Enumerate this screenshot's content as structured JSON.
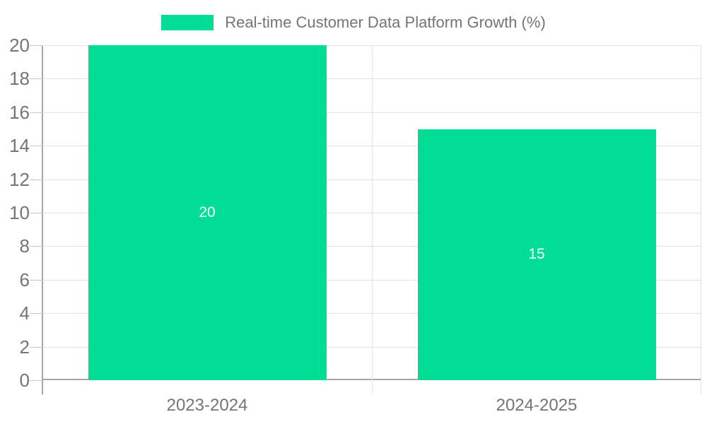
{
  "chart_data": {
    "type": "bar",
    "legend": {
      "label": "Real-time Customer Data Platform Growth (%)",
      "position": "top-center"
    },
    "categories": [
      "2023-2024",
      "2024-2025"
    ],
    "series": [
      {
        "name": "Real-time Customer Data Platform Growth (%)",
        "values": [
          20,
          15
        ]
      }
    ],
    "data_labels": [
      "20",
      "15"
    ],
    "xlabel": "",
    "ylabel": "",
    "ylim": [
      0,
      20
    ],
    "yticks": [
      0,
      2,
      4,
      6,
      8,
      10,
      12,
      14,
      16,
      18,
      20
    ],
    "grid": true,
    "colors": {
      "bar": "#00DD96",
      "grid": "#e2e2e2",
      "tick": "#c9c9c9",
      "axis": "#a6a6a6",
      "tick_text": "#757575",
      "legend_text": "#757575",
      "bar_label_text": "#ffffff",
      "background": "#ffffff"
    }
  }
}
